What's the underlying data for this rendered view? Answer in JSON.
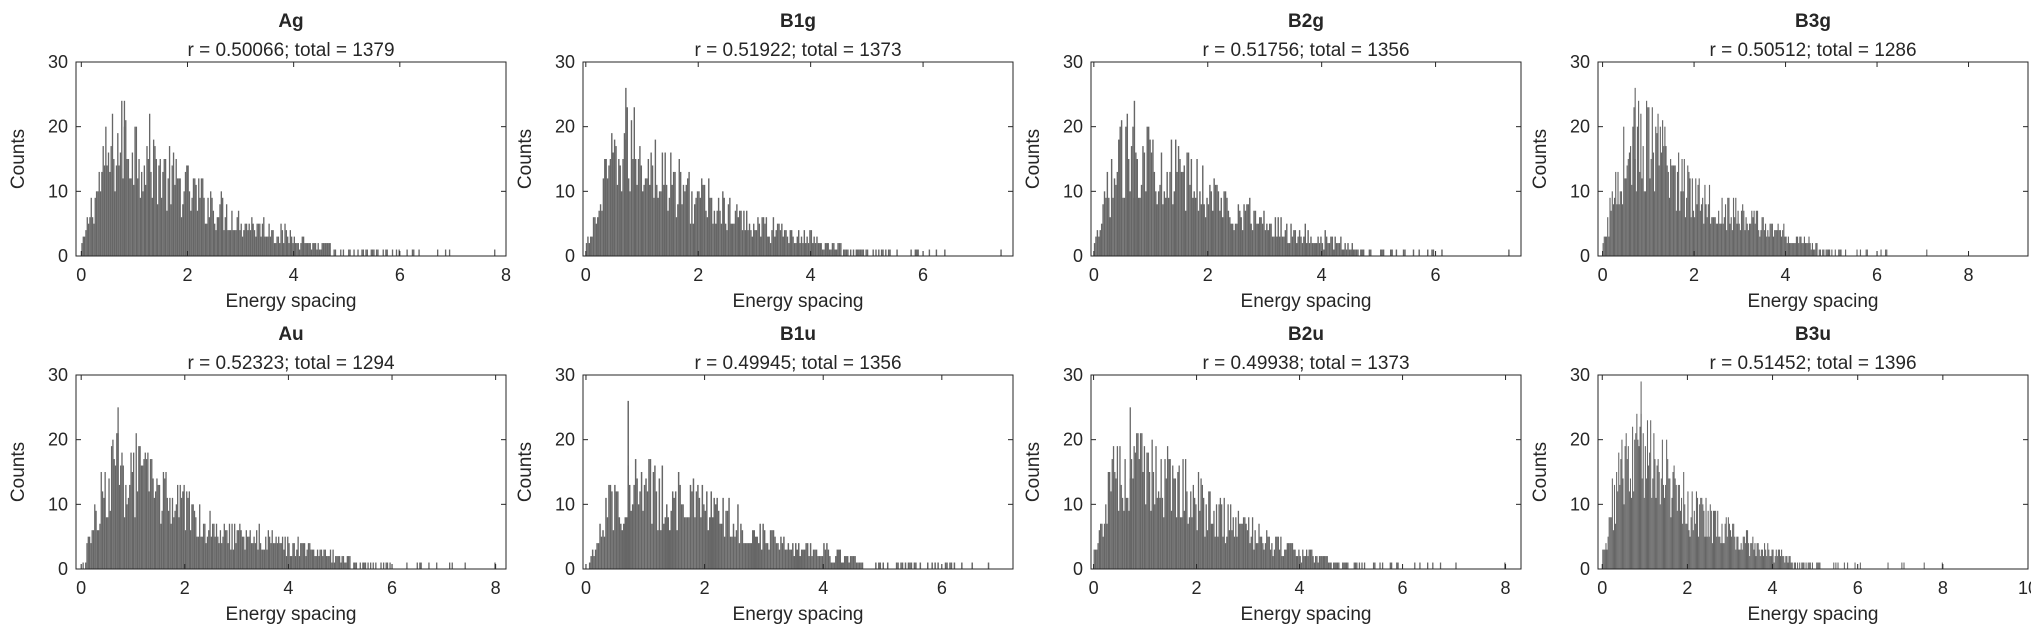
{
  "chart_data": [
    {
      "type": "bar",
      "title": "Ag",
      "subtitle": "r = 0.50066; total = 1379",
      "xlabel": "Energy spacing",
      "ylabel": "Counts",
      "xlim": [
        -0.1,
        8.0
      ],
      "ylim": [
        0,
        30
      ],
      "xticks": [
        0,
        2,
        4,
        6,
        8
      ],
      "yticks": [
        0,
        10,
        20,
        30
      ],
      "grid": false,
      "color": "#666666",
      "profile": [
        [
          0.05,
          2
        ],
        [
          0.15,
          6
        ],
        [
          0.25,
          9
        ],
        [
          0.35,
          11
        ],
        [
          0.45,
          14
        ],
        [
          0.6,
          16
        ],
        [
          0.8,
          17
        ],
        [
          1.0,
          17
        ],
        [
          1.2,
          16
        ],
        [
          1.4,
          14
        ],
        [
          1.6,
          12
        ],
        [
          1.8,
          11
        ],
        [
          2.0,
          10
        ],
        [
          2.2,
          9
        ],
        [
          2.5,
          8
        ],
        [
          2.8,
          6
        ],
        [
          3.1,
          5
        ],
        [
          3.5,
          4
        ],
        [
          3.9,
          3
        ],
        [
          4.3,
          2
        ],
        [
          4.8,
          1.5
        ],
        [
          5.4,
          1
        ],
        [
          6.0,
          0.6
        ],
        [
          6.6,
          0.2
        ],
        [
          7.4,
          0.05
        ],
        [
          7.9,
          0
        ]
      ],
      "max_x": 7.8,
      "peak": 24
    },
    {
      "type": "bar",
      "title": "B1g",
      "subtitle": "r = 0.51922; total = 1373",
      "xlabel": "Energy spacing",
      "ylabel": "Counts",
      "xlim": [
        -0.05,
        7.6
      ],
      "ylim": [
        0,
        30
      ],
      "xticks": [
        0,
        2,
        4,
        6
      ],
      "yticks": [
        0,
        10,
        20,
        30
      ],
      "grid": false,
      "color": "#666666",
      "profile": [
        [
          0.05,
          2
        ],
        [
          0.15,
          5
        ],
        [
          0.25,
          8
        ],
        [
          0.35,
          11
        ],
        [
          0.5,
          14
        ],
        [
          0.7,
          16
        ],
        [
          0.9,
          16
        ],
        [
          1.1,
          15
        ],
        [
          1.3,
          13
        ],
        [
          1.5,
          11
        ],
        [
          1.8,
          10
        ],
        [
          2.0,
          9
        ],
        [
          2.3,
          8
        ],
        [
          2.6,
          6
        ],
        [
          3.0,
          5
        ],
        [
          3.4,
          4
        ],
        [
          3.8,
          3
        ],
        [
          4.3,
          2
        ],
        [
          4.8,
          1.2
        ],
        [
          5.3,
          0.7
        ],
        [
          5.9,
          0.3
        ],
        [
          6.4,
          0.05
        ],
        [
          7.5,
          0
        ]
      ],
      "max_x": 7.4,
      "peak": 26
    },
    {
      "type": "bar",
      "title": "B2g",
      "subtitle": "r = 0.51756; total = 1356",
      "xlabel": "Energy spacing",
      "ylabel": "Counts",
      "xlim": [
        -0.05,
        7.5
      ],
      "ylim": [
        0,
        30
      ],
      "xticks": [
        0,
        2,
        4,
        6
      ],
      "yticks": [
        0,
        10,
        20,
        30
      ],
      "grid": false,
      "color": "#666666",
      "profile": [
        [
          0.05,
          2
        ],
        [
          0.15,
          6
        ],
        [
          0.25,
          10
        ],
        [
          0.35,
          12
        ],
        [
          0.5,
          15
        ],
        [
          0.7,
          16
        ],
        [
          0.9,
          16
        ],
        [
          1.1,
          15
        ],
        [
          1.3,
          14
        ],
        [
          1.5,
          12
        ],
        [
          1.8,
          11
        ],
        [
          2.0,
          10
        ],
        [
          2.3,
          8
        ],
        [
          2.6,
          7
        ],
        [
          3.0,
          5
        ],
        [
          3.4,
          4
        ],
        [
          3.8,
          3
        ],
        [
          4.3,
          2
        ],
        [
          4.8,
          1.2
        ],
        [
          5.3,
          0.7
        ],
        [
          5.9,
          0.3
        ],
        [
          6.4,
          0.05
        ],
        [
          7.4,
          0
        ]
      ],
      "max_x": 7.3,
      "peak": 24
    },
    {
      "type": "bar",
      "title": "B3g",
      "subtitle": "r = 0.50512; total = 1286",
      "xlabel": "Energy spacing",
      "ylabel": "Counts",
      "xlim": [
        -0.1,
        9.3
      ],
      "ylim": [
        0,
        30
      ],
      "xticks": [
        0,
        2,
        4,
        6,
        8
      ],
      "yticks": [
        0,
        10,
        20,
        30
      ],
      "grid": false,
      "color": "#666666",
      "profile": [
        [
          0.05,
          2
        ],
        [
          0.15,
          6
        ],
        [
          0.25,
          10
        ],
        [
          0.35,
          12
        ],
        [
          0.5,
          15
        ],
        [
          0.7,
          17
        ],
        [
          0.9,
          17
        ],
        [
          1.1,
          16
        ],
        [
          1.3,
          15
        ],
        [
          1.5,
          13
        ],
        [
          1.8,
          11
        ],
        [
          2.0,
          10
        ],
        [
          2.3,
          9
        ],
        [
          2.6,
          7
        ],
        [
          3.0,
          6
        ],
        [
          3.4,
          5
        ],
        [
          3.8,
          4
        ],
        [
          4.3,
          2.5
        ],
        [
          4.8,
          1.4
        ],
        [
          5.4,
          0.8
        ],
        [
          6.0,
          0.4
        ],
        [
          6.8,
          0.1
        ],
        [
          7.5,
          0
        ]
      ],
      "max_x": 7.1,
      "peak": 26
    },
    {
      "type": "bar",
      "title": "Au",
      "subtitle": "r = 0.52323; total = 1294",
      "xlabel": "Energy spacing",
      "ylabel": "Counts",
      "xlim": [
        -0.1,
        8.2
      ],
      "ylim": [
        0,
        30
      ],
      "xticks": [
        0,
        2,
        4,
        6,
        8
      ],
      "yticks": [
        0,
        10,
        20,
        30
      ],
      "grid": false,
      "color": "#666666",
      "profile": [
        [
          0.05,
          1
        ],
        [
          0.15,
          4
        ],
        [
          0.25,
          7
        ],
        [
          0.35,
          10
        ],
        [
          0.5,
          13
        ],
        [
          0.7,
          15
        ],
        [
          0.9,
          15
        ],
        [
          1.1,
          14
        ],
        [
          1.3,
          13
        ],
        [
          1.5,
          12
        ],
        [
          1.8,
          10
        ],
        [
          2.0,
          9
        ],
        [
          2.3,
          8
        ],
        [
          2.6,
          7
        ],
        [
          3.0,
          5
        ],
        [
          3.4,
          5
        ],
        [
          3.8,
          4
        ],
        [
          4.3,
          3
        ],
        [
          4.8,
          2
        ],
        [
          5.4,
          1.4
        ],
        [
          6.0,
          0.8
        ],
        [
          6.8,
          0.4
        ],
        [
          7.6,
          0.1
        ],
        [
          8.0,
          0
        ]
      ],
      "max_x": 8.0,
      "peak": 25
    },
    {
      "type": "bar",
      "title": "B1u",
      "subtitle": "r = 0.49945; total = 1356",
      "xlabel": "Energy spacing",
      "ylabel": "Counts",
      "xlim": [
        -0.05,
        7.2
      ],
      "ylim": [
        0,
        30
      ],
      "xticks": [
        0,
        2,
        4,
        6
      ],
      "yticks": [
        0,
        10,
        20,
        30
      ],
      "grid": false,
      "color": "#666666",
      "profile": [
        [
          0.05,
          1
        ],
        [
          0.15,
          4
        ],
        [
          0.25,
          7
        ],
        [
          0.35,
          9
        ],
        [
          0.5,
          11
        ],
        [
          0.7,
          12
        ],
        [
          0.9,
          12
        ],
        [
          1.1,
          12
        ],
        [
          1.3,
          11
        ],
        [
          1.5,
          11
        ],
        [
          1.8,
          10
        ],
        [
          2.0,
          9
        ],
        [
          2.3,
          8
        ],
        [
          2.6,
          7
        ],
        [
          3.0,
          5
        ],
        [
          3.4,
          4
        ],
        [
          3.8,
          3
        ],
        [
          4.3,
          2
        ],
        [
          4.8,
          1.4
        ],
        [
          5.4,
          1
        ],
        [
          6.0,
          0.6
        ],
        [
          6.6,
          0.3
        ],
        [
          7.0,
          0
        ]
      ],
      "max_x": 6.8,
      "peak": 26
    },
    {
      "type": "bar",
      "title": "B2u",
      "subtitle": "r = 0.49938; total = 1373",
      "xlabel": "Energy spacing",
      "ylabel": "Counts",
      "xlim": [
        -0.05,
        8.3
      ],
      "ylim": [
        0,
        30
      ],
      "xticks": [
        0,
        2,
        4,
        6,
        8
      ],
      "yticks": [
        0,
        10,
        20,
        30
      ],
      "grid": false,
      "color": "#666666",
      "profile": [
        [
          0.05,
          2
        ],
        [
          0.15,
          6
        ],
        [
          0.25,
          10
        ],
        [
          0.35,
          13
        ],
        [
          0.5,
          14
        ],
        [
          0.7,
          15
        ],
        [
          0.9,
          15
        ],
        [
          1.1,
          15
        ],
        [
          1.3,
          15
        ],
        [
          1.5,
          14
        ],
        [
          1.7,
          13
        ],
        [
          1.9,
          12
        ],
        [
          2.1,
          10
        ],
        [
          2.4,
          8
        ],
        [
          2.7,
          7
        ],
        [
          3.0,
          6
        ],
        [
          3.4,
          4
        ],
        [
          3.8,
          3
        ],
        [
          4.3,
          2
        ],
        [
          4.8,
          1.3
        ],
        [
          5.4,
          0.8
        ],
        [
          6.0,
          0.4
        ],
        [
          6.8,
          0.15
        ],
        [
          7.6,
          0.05
        ],
        [
          8.1,
          0
        ]
      ],
      "max_x": 8.0,
      "peak": 25
    },
    {
      "type": "bar",
      "title": "B3u",
      "subtitle": "r = 0.51452; total = 1396",
      "xlabel": "Energy spacing",
      "ylabel": "Counts",
      "xlim": [
        -0.1,
        10.0
      ],
      "ylim": [
        0,
        30
      ],
      "xticks": [
        0,
        2,
        4,
        6,
        8,
        10
      ],
      "yticks": [
        0,
        10,
        20,
        30
      ],
      "grid": false,
      "color": "#666666",
      "profile": [
        [
          0.05,
          2
        ],
        [
          0.15,
          6
        ],
        [
          0.25,
          10
        ],
        [
          0.35,
          13
        ],
        [
          0.5,
          15
        ],
        [
          0.7,
          17
        ],
        [
          0.9,
          18
        ],
        [
          1.1,
          18
        ],
        [
          1.3,
          17
        ],
        [
          1.5,
          15
        ],
        [
          1.7,
          13
        ],
        [
          1.9,
          11
        ],
        [
          2.1,
          9
        ],
        [
          2.4,
          8
        ],
        [
          2.7,
          7
        ],
        [
          3.0,
          5
        ],
        [
          3.4,
          4
        ],
        [
          3.8,
          3
        ],
        [
          4.2,
          2
        ],
        [
          4.6,
          1.3
        ],
        [
          5.2,
          0.8
        ],
        [
          5.8,
          0.4
        ],
        [
          6.6,
          0.15
        ],
        [
          7.4,
          0.05
        ],
        [
          8.0,
          0
        ]
      ],
      "max_x": 8.0,
      "peak": 29
    }
  ]
}
